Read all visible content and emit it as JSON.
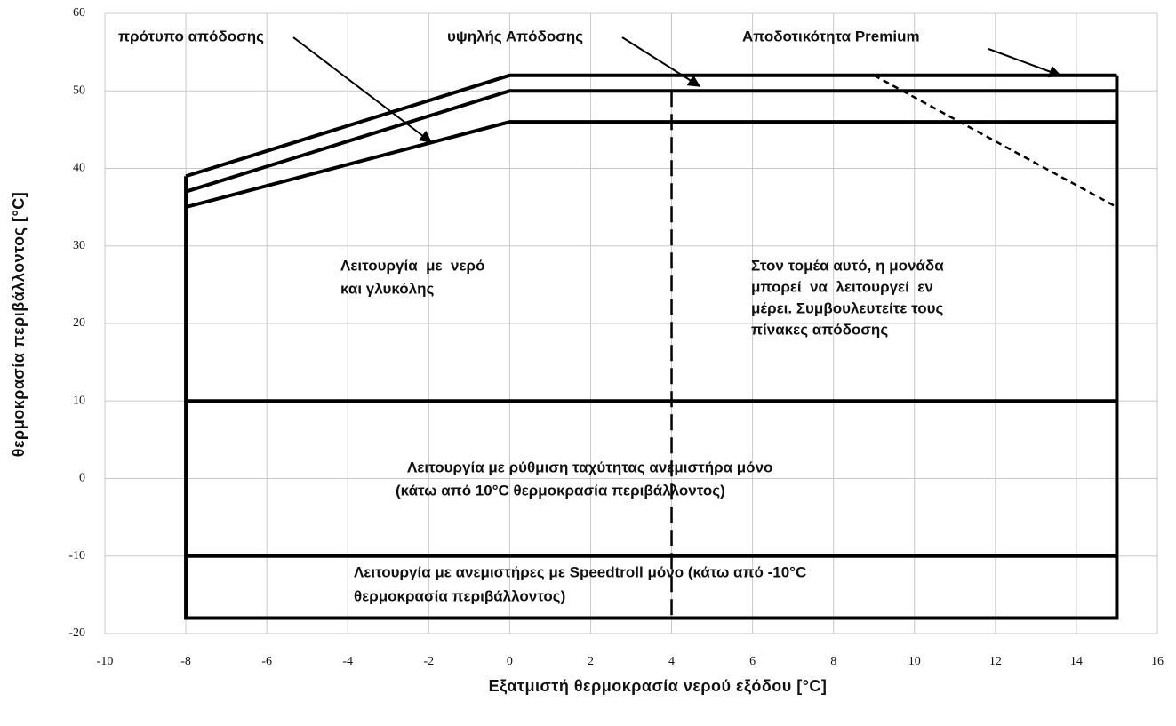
{
  "chart_data": {
    "type": "line",
    "xlabel": "Εξατμιστή  θερμοκρασία  νερού  εξόδου  [°C]",
    "ylabel": "θερμοκρασία περιβάλλοντος [°C]",
    "xlim": [
      -10,
      16
    ],
    "xticks": [
      -10,
      -8,
      -6,
      -4,
      -2,
      0,
      2,
      4,
      6,
      8,
      10,
      12,
      14,
      16
    ],
    "ylim": [
      -20,
      60
    ],
    "yticks": [
      -20,
      -10,
      0,
      10,
      20,
      30,
      40,
      50,
      60
    ],
    "grid": true,
    "series": [
      {
        "color": "#000000",
        "style": "solid",
        "x": [
          -8,
          0,
          15
        ],
        "values": [
          39,
          52,
          52
        ]
      },
      {
        "color": "#000000",
        "style": "solid",
        "x": [
          -8,
          0,
          15
        ],
        "values": [
          37,
          50,
          50
        ]
      },
      {
        "color": "#000000",
        "style": "solid",
        "x": [
          -8,
          0,
          15
        ],
        "values": [
          35,
          46,
          46
        ]
      },
      {
        "color": "#000000",
        "style": "solid",
        "x": [
          -8,
          -8,
          15,
          15
        ],
        "values": [
          39,
          -18,
          -18,
          52
        ]
      },
      {
        "color": "#000000",
        "style": "solid",
        "x": [
          -8,
          15
        ],
        "values": [
          10,
          10
        ]
      },
      {
        "color": "#000000",
        "style": "solid",
        "x": [
          -8,
          15
        ],
        "values": [
          -10,
          -10
        ]
      },
      {
        "color": "#000000",
        "style": "dashed",
        "x": [
          4,
          4
        ],
        "values": [
          50,
          -18
        ]
      },
      {
        "color": "#000000",
        "style": "dotted",
        "x": [
          9,
          15
        ],
        "values": [
          52,
          35
        ]
      }
    ],
    "annotations": [
      [
        "πρότυπο απόδοσης"
      ],
      [
        "υψηλής Απόδοσης"
      ],
      [
        "Αποδοτικότητα Premium"
      ],
      [
        "Λειτουργία  με  νερό",
        "και γλυκόλης"
      ],
      [
        "Στον τομέα αυτό, η μονάδα",
        "μπορεί  να  λειτουργεί  εν",
        "μέρει. Συμβουλευτείτε τους",
        "πίνακες απόδοσης"
      ],
      [
        "Λειτουργία με ρύθμιση ταχύτητας ανεμιστήρα μόνο",
        "(κάτω από 10°C θερμοκρασία περιβάλλοντος)"
      ],
      [
        "Λειτουργία με ανεμιστήρες με Speedtroll μόνο (κάτω από -10°C",
        "θερμοκρασία περιβάλλοντος)"
      ]
    ]
  }
}
